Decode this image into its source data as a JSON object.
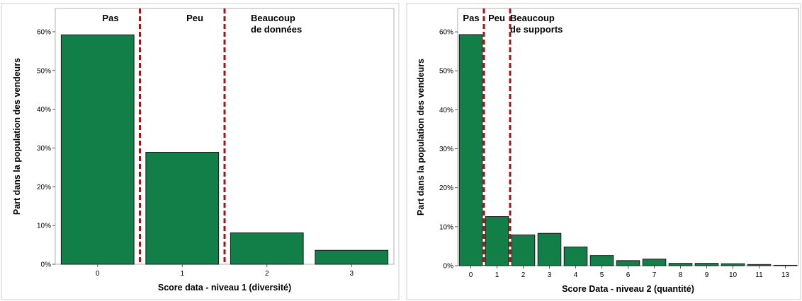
{
  "chart_data": [
    {
      "type": "bar",
      "categories": [
        "0",
        "1",
        "2",
        "3"
      ],
      "values": [
        59.2,
        28.9,
        8.1,
        3.6
      ],
      "value_unit": "%",
      "xlabel": "Score  data - niveau 1 (diversité)",
      "ylabel": "Part dans la population des vendeurs",
      "ylim": [
        0,
        66
      ],
      "yticks": [
        "0%",
        "10%",
        "20%",
        "30%",
        "40%",
        "50%",
        "60%"
      ],
      "grid": false,
      "bar_color": "#137f48",
      "divider_color": "#a31515",
      "dividers_between": [
        [
          0,
          1
        ],
        [
          1,
          2
        ]
      ],
      "zone_labels": [
        {
          "lines": [
            "Pas"
          ],
          "zone": 0
        },
        {
          "lines": [
            "Peu"
          ],
          "zone": 1
        },
        {
          "lines": [
            "Beaucoup",
            "de données"
          ],
          "zone": 2
        }
      ]
    },
    {
      "type": "bar",
      "categories": [
        "0",
        "1",
        "2",
        "3",
        "4",
        "5",
        "6",
        "7",
        "8",
        "9",
        "10",
        "11",
        "13"
      ],
      "values": [
        59.3,
        12.6,
        7.9,
        8.3,
        4.8,
        2.6,
        1.3,
        1.7,
        0.6,
        0.6,
        0.5,
        0.3,
        0.1
      ],
      "value_unit": "%",
      "xlabel": "Score  Data - niveau 2 (quantité)",
      "ylabel": "Part dans la population des vendeurs",
      "ylim": [
        0,
        66
      ],
      "yticks": [
        "0%",
        "10%",
        "20%",
        "30%",
        "40%",
        "50%",
        "60%"
      ],
      "grid": false,
      "bar_color": "#137f48",
      "divider_color": "#a31515",
      "dividers_between": [
        [
          0,
          1
        ],
        [
          1,
          2
        ]
      ],
      "zone_labels": [
        {
          "lines": [
            "Pas"
          ],
          "zone": 0
        },
        {
          "lines": [
            "Peu"
          ],
          "zone": 1
        },
        {
          "lines": [
            "Beaucoup",
            "de supports"
          ],
          "zone": 2
        }
      ]
    }
  ]
}
